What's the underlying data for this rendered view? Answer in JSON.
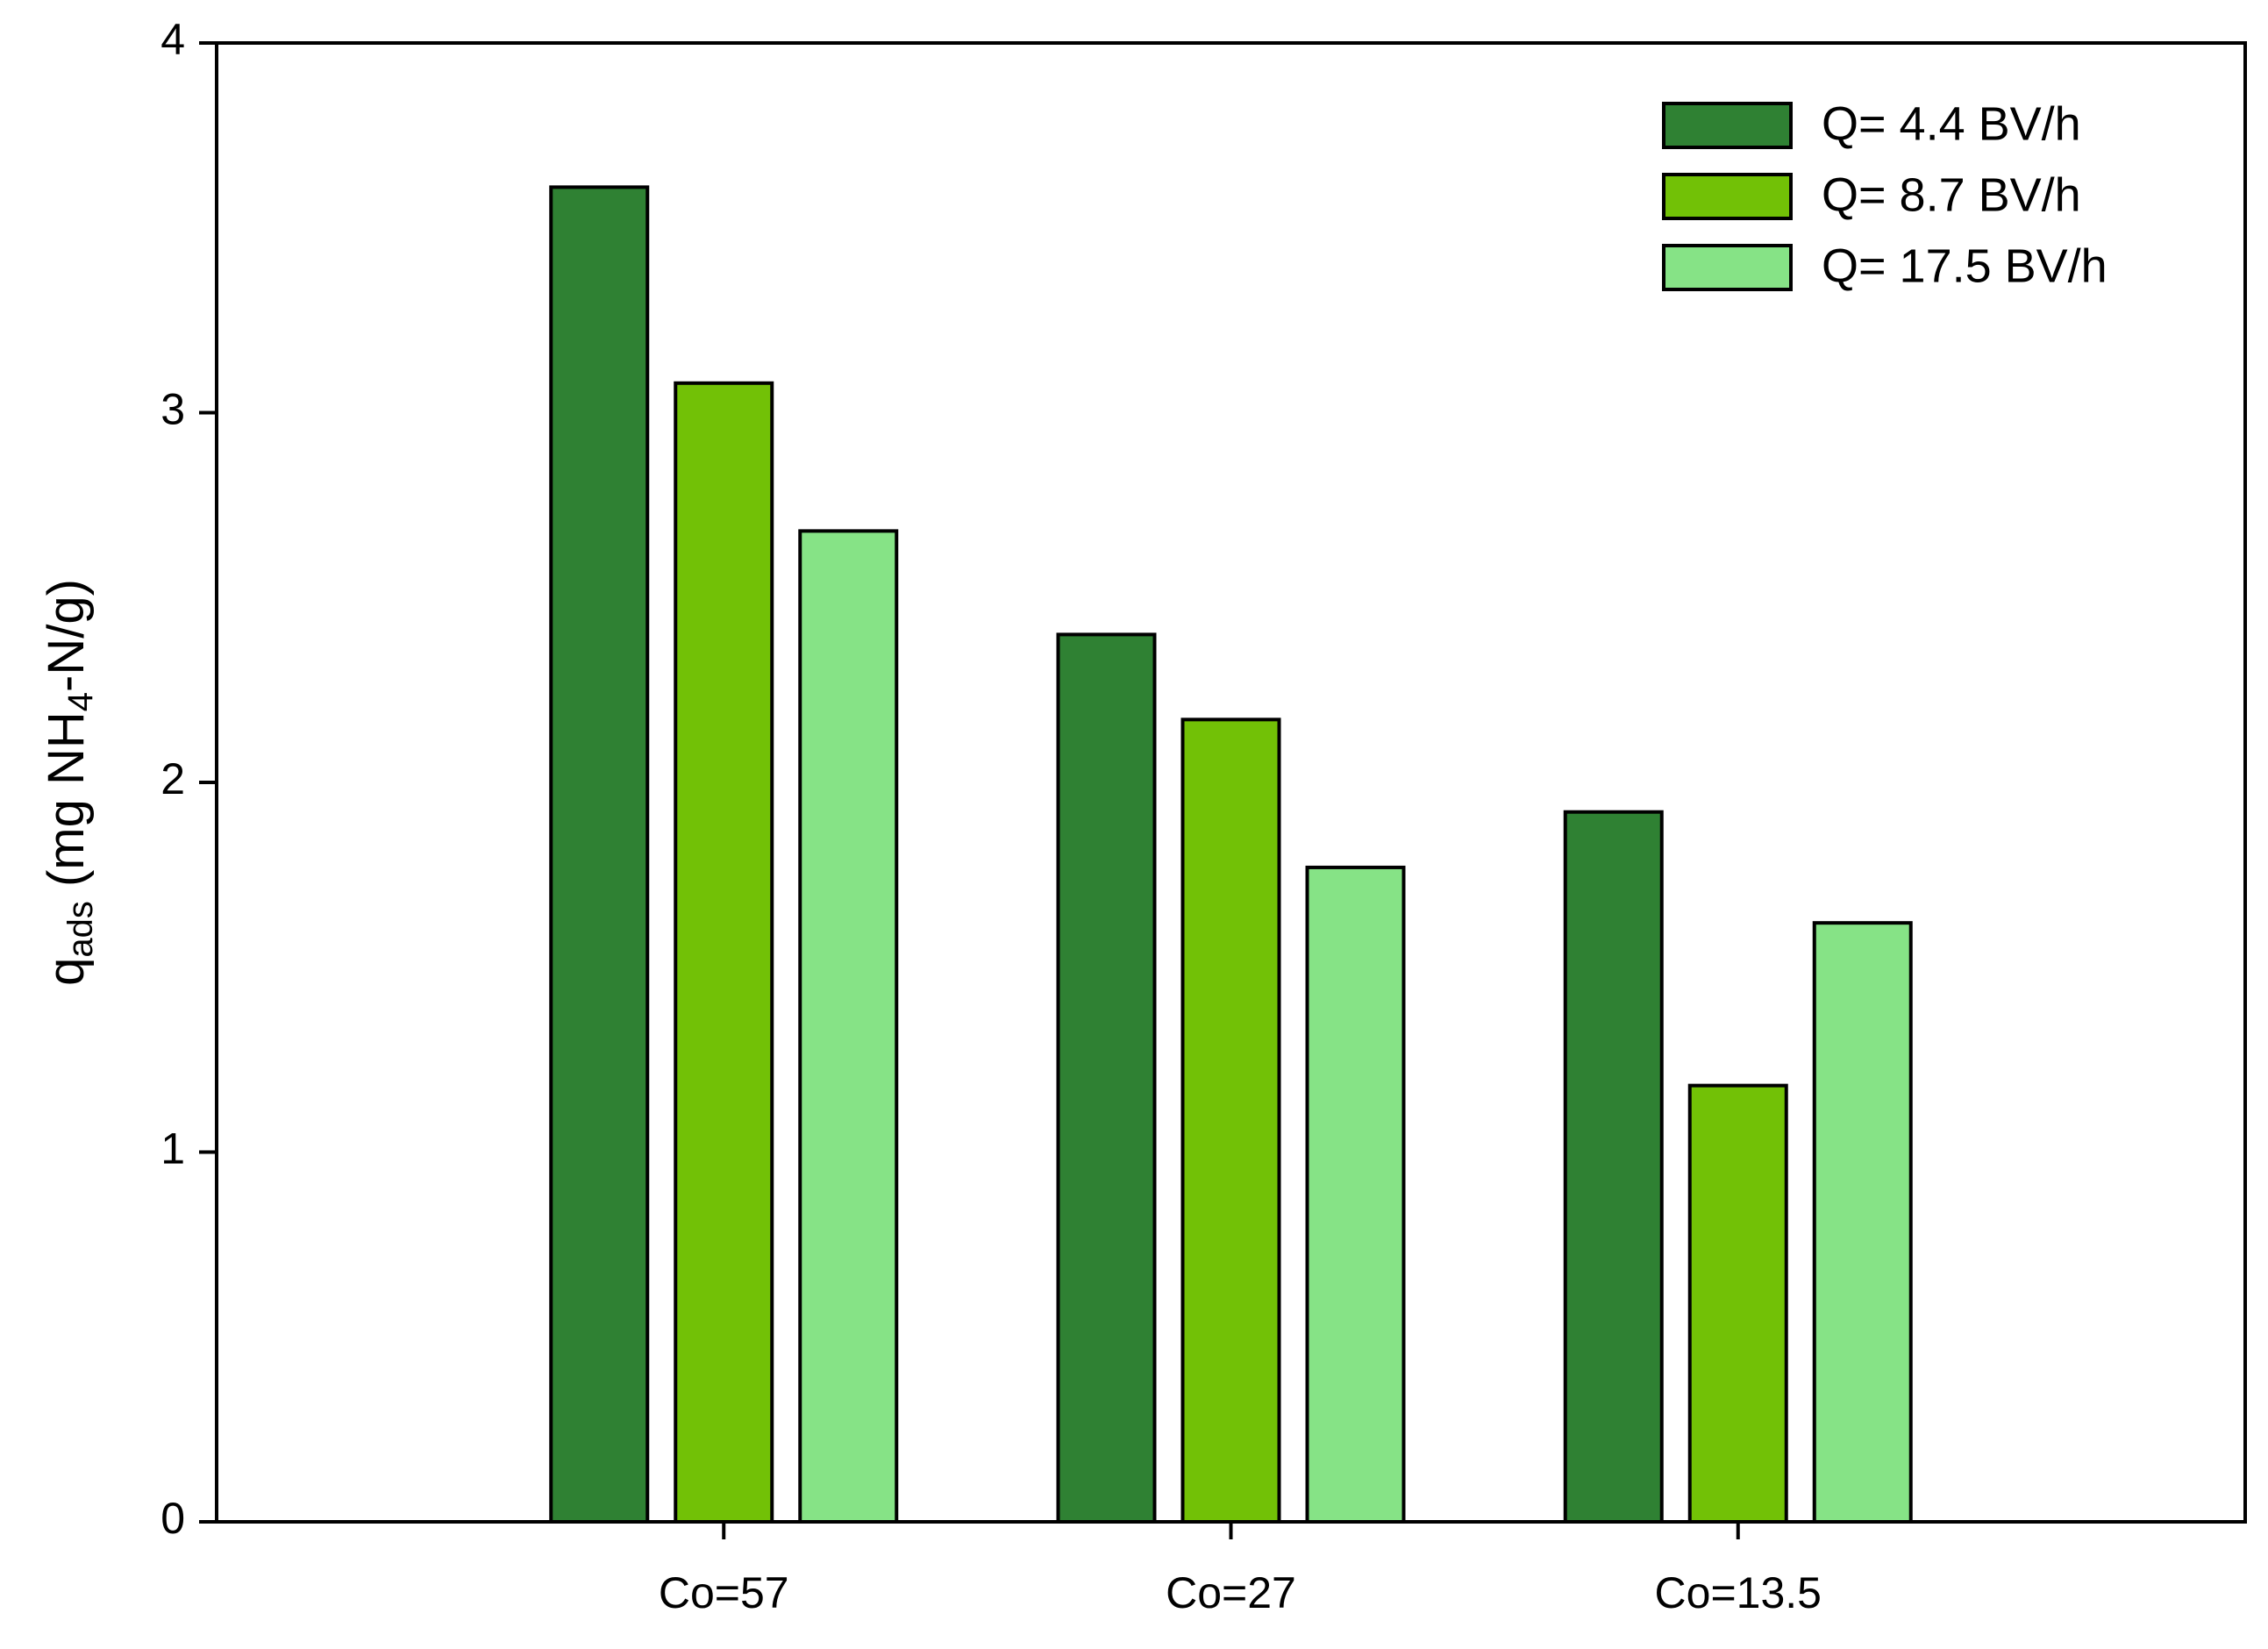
{
  "chart_data": {
    "type": "bar",
    "ylabel": [
      "q",
      "ads",
      " (mg NH",
      "4",
      "-N/g)"
    ],
    "categories": [
      "Co=57",
      "Co=27",
      "Co=13.5"
    ],
    "series": [
      {
        "name": "Q= 4.4 BV/h",
        "color": "#2f8133",
        "values": [
          3.61,
          2.4,
          1.92
        ]
      },
      {
        "name": "Q= 8.7 BV/h",
        "color": "#72c106",
        "values": [
          3.08,
          2.17,
          1.18
        ]
      },
      {
        "name": "Q= 17.5 BV/h",
        "color": "#86e386",
        "values": [
          2.68,
          1.77,
          1.62
        ]
      }
    ],
    "ylim": [
      0,
      4
    ],
    "yticks": [
      0,
      1,
      2,
      3,
      4
    ],
    "grid": false,
    "legend": "upper right"
  }
}
